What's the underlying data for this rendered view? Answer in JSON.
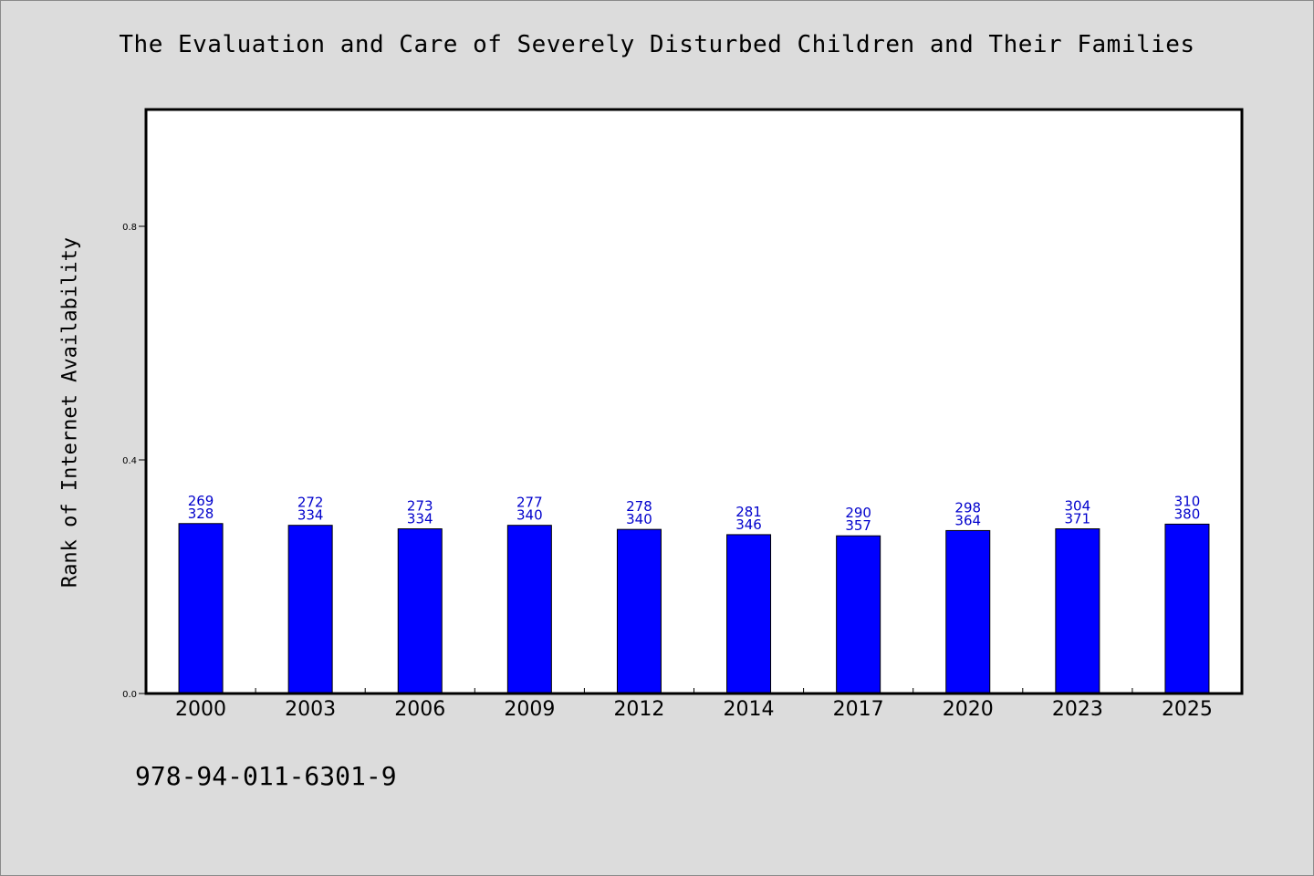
{
  "title": "The Evaluation and Care of Severely Disturbed Children and Their Families",
  "isbn": "978-94-011-6301-9",
  "colors": {
    "bar_fill": "#0000ff",
    "bar_stroke": "#000000",
    "label_color": "#0000cc",
    "background": "#dcdcdc",
    "plot_background": "#ffffff"
  },
  "chart_data": {
    "type": "bar",
    "title": "The Evaluation and Care of Severely Disturbed Children and Their Families",
    "xlabel": "",
    "ylabel": "Rank of Internet Availability",
    "ylim": [
      0,
      1.0
    ],
    "yticks": [
      0.0,
      0.4,
      0.8
    ],
    "ytick_labels": [
      "0.0",
      "0.4",
      "0.8"
    ],
    "grid": false,
    "legend": "none",
    "categories": [
      "2000",
      "2003",
      "2006",
      "2009",
      "2012",
      "2014",
      "2017",
      "2020",
      "2023",
      "2025"
    ],
    "values": [
      0.291,
      0.288,
      0.282,
      0.288,
      0.281,
      0.272,
      0.27,
      0.279,
      0.282,
      0.29
    ],
    "data_labels_top": [
      "269",
      "272",
      "273",
      "277",
      "278",
      "281",
      "290",
      "298",
      "304",
      "310"
    ],
    "data_labels_bottom": [
      "328",
      "334",
      "334",
      "340",
      "340",
      "346",
      "357",
      "364",
      "371",
      "380"
    ]
  }
}
